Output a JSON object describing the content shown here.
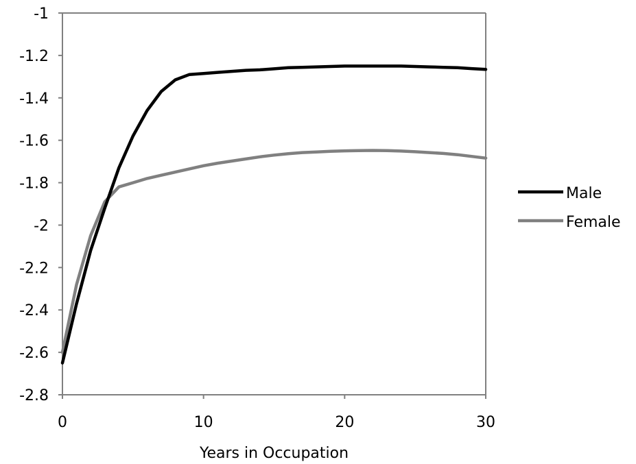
{
  "chart_data": {
    "type": "line",
    "title": "",
    "xlabel": "Years in Occupation",
    "ylabel": "",
    "xlim": [
      0,
      30
    ],
    "ylim": [
      -2.8,
      -1
    ],
    "x_ticks": [
      0,
      10,
      20,
      30
    ],
    "x_tick_labels": [
      "0",
      "10",
      "20",
      "30"
    ],
    "y_ticks": [
      -1,
      -1.2,
      -1.4,
      -1.6,
      -1.8,
      -2,
      -2.2,
      -2.4,
      -2.6,
      -2.8
    ],
    "y_tick_labels": [
      "-1",
      "-1.2",
      "-1.4",
      "-1.6",
      "-1.8",
      "-2",
      "-2.2",
      "-2.4",
      "-2.6",
      "-2.8"
    ],
    "grid": false,
    "legend_position": "right",
    "series": [
      {
        "name": "Male",
        "color": "#000000",
        "x": [
          0,
          1,
          2,
          3,
          4,
          5,
          6,
          7,
          8,
          9,
          10,
          11,
          12,
          13,
          14,
          15,
          16,
          17,
          18,
          19,
          20,
          21,
          22,
          23,
          24,
          25,
          26,
          27,
          28,
          29,
          30
        ],
        "y": [
          -2.65,
          -2.37,
          -2.12,
          -1.92,
          -1.73,
          -1.58,
          -1.46,
          -1.37,
          -1.315,
          -1.29,
          -1.285,
          -1.28,
          -1.275,
          -1.27,
          -1.268,
          -1.263,
          -1.258,
          -1.256,
          -1.254,
          -1.252,
          -1.25,
          -1.25,
          -1.25,
          -1.25,
          -1.25,
          -1.252,
          -1.254,
          -1.256,
          -1.258,
          -1.262,
          -1.266
        ]
      },
      {
        "name": "Female",
        "color": "#808080",
        "x": [
          0,
          1,
          2,
          3,
          4,
          5,
          6,
          7,
          8,
          9,
          10,
          11,
          12,
          13,
          14,
          15,
          16,
          17,
          18,
          19,
          20,
          21,
          22,
          23,
          24,
          25,
          26,
          27,
          28,
          29,
          30
        ],
        "y": [
          -2.6,
          -2.28,
          -2.05,
          -1.89,
          -1.82,
          -1.8,
          -1.78,
          -1.765,
          -1.75,
          -1.735,
          -1.72,
          -1.708,
          -1.698,
          -1.688,
          -1.678,
          -1.67,
          -1.663,
          -1.658,
          -1.655,
          -1.652,
          -1.65,
          -1.649,
          -1.648,
          -1.649,
          -1.651,
          -1.654,
          -1.658,
          -1.662,
          -1.668,
          -1.676,
          -1.684
        ]
      }
    ]
  }
}
